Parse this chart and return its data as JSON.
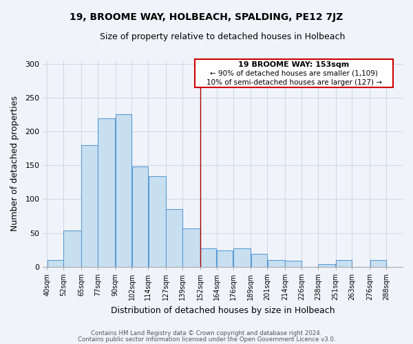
{
  "title": "19, BROOME WAY, HOLBEACH, SPALDING, PE12 7JZ",
  "subtitle": "Size of property relative to detached houses in Holbeach",
  "xlabel": "Distribution of detached houses by size in Holbeach",
  "ylabel": "Number of detached properties",
  "footer_lines": [
    "Contains HM Land Registry data © Crown copyright and database right 2024.",
    "Contains public sector information licensed under the Open Government Licence v3.0."
  ],
  "bar_left_edges": [
    40,
    52,
    65,
    77,
    90,
    102,
    114,
    127,
    139,
    152,
    164,
    176,
    189,
    201,
    214,
    226,
    238,
    251,
    263,
    276
  ],
  "bar_heights": [
    10,
    54,
    180,
    220,
    226,
    148,
    134,
    85,
    57,
    27,
    24,
    27,
    19,
    10,
    9,
    0,
    4,
    10,
    0,
    10
  ],
  "bar_widths": [
    12,
    13,
    12,
    13,
    12,
    12,
    13,
    12,
    13,
    12,
    12,
    13,
    12,
    13,
    12,
    12,
    13,
    12,
    13,
    12
  ],
  "bar_color": "#c8dff0",
  "bar_edge_color": "#5b9bd5",
  "reference_x": 152,
  "reference_color": "#aa0000",
  "ylim": [
    0,
    305
  ],
  "xlim": [
    37,
    300
  ],
  "tick_labels": [
    "40sqm",
    "52sqm",
    "65sqm",
    "77sqm",
    "90sqm",
    "102sqm",
    "114sqm",
    "127sqm",
    "139sqm",
    "152sqm",
    "164sqm",
    "176sqm",
    "189sqm",
    "201sqm",
    "214sqm",
    "226sqm",
    "238sqm",
    "251sqm",
    "263sqm",
    "276sqm",
    "288sqm"
  ],
  "tick_positions": [
    40,
    52,
    65,
    77,
    90,
    102,
    114,
    127,
    139,
    152,
    164,
    176,
    189,
    201,
    214,
    226,
    238,
    251,
    263,
    276,
    288
  ],
  "annotation_title": "19 BROOME WAY: 153sqm",
  "annotation_line1": "← 90% of detached houses are smaller (1,109)",
  "annotation_line2": "10% of semi-detached houses are larger (127) →",
  "grid_color": "#d0d8e8",
  "bg_color": "#f0f4fa",
  "yticks": [
    0,
    50,
    100,
    150,
    200,
    250,
    300
  ],
  "figsize": [
    6.0,
    5.0
  ],
  "dpi": 100
}
